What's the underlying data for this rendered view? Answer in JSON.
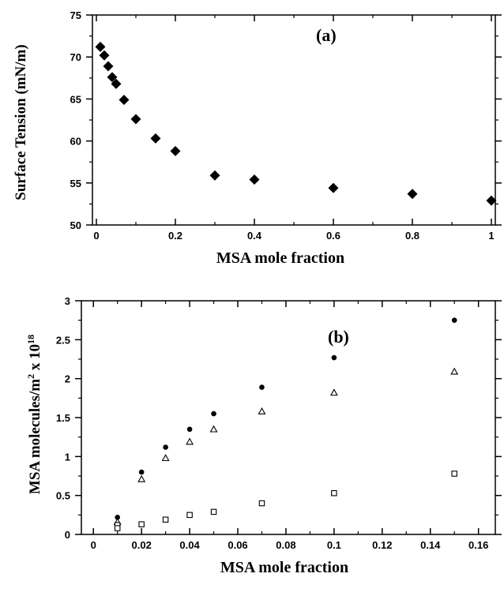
{
  "chart_data": [
    {
      "type": "scatter",
      "panel_label": "(a)",
      "xlabel": "MSA mole fraction",
      "ylabel": "Surface Tension (mN/m)",
      "xlim": [
        -0.01,
        1.01
      ],
      "ylim": [
        50,
        75
      ],
      "xticks": [
        0,
        0.2,
        0.4,
        0.6,
        0.8,
        1
      ],
      "xtick_labels": [
        "0",
        "0.2",
        "0.4",
        "0.6",
        "0.8",
        "1"
      ],
      "yticks": [
        50,
        55,
        60,
        65,
        70,
        75
      ],
      "ytick_labels": [
        "50",
        "55",
        "60",
        "65",
        "70",
        "75"
      ],
      "grid": false,
      "series": [
        {
          "marker": "filled-diamond",
          "x": [
            0.01,
            0.02,
            0.03,
            0.04,
            0.05,
            0.07,
            0.1,
            0.15,
            0.2,
            0.3,
            0.4,
            0.6,
            0.8,
            1.0
          ],
          "y": [
            71.2,
            70.2,
            68.9,
            67.6,
            66.8,
            64.9,
            62.6,
            60.3,
            58.8,
            55.9,
            55.4,
            54.4,
            53.7,
            52.9
          ]
        }
      ]
    },
    {
      "type": "scatter",
      "panel_label": "(b)",
      "xlabel": "MSA mole fraction",
      "ylabel_main": "MSA molecules/m",
      "ylabel_sup1": "2",
      "ylabel_mid": " x 10",
      "ylabel_sup2": "18",
      "xlim": [
        -0.005,
        0.167
      ],
      "ylim": [
        0,
        3
      ],
      "xticks": [
        0,
        0.02,
        0.04,
        0.06,
        0.08,
        0.1,
        0.12,
        0.14,
        0.16
      ],
      "xtick_labels": [
        "0",
        "0.02",
        "0.04",
        "0.06",
        "0.08",
        "0.1",
        "0.12",
        "0.14",
        "0.16"
      ],
      "yticks": [
        0,
        0.5,
        1,
        1.5,
        2,
        2.5,
        3
      ],
      "ytick_labels": [
        "0",
        "0.5",
        "1",
        "1.5",
        "2",
        "2.5",
        "3"
      ],
      "grid": false,
      "series": [
        {
          "marker": "filled-circle",
          "x": [
            0.01,
            0.02,
            0.03,
            0.04,
            0.05,
            0.07,
            0.1,
            0.15
          ],
          "y": [
            0.22,
            0.8,
            1.12,
            1.35,
            1.55,
            1.89,
            2.27,
            2.75
          ]
        },
        {
          "marker": "open-triangle",
          "x": [
            0.01,
            0.02,
            0.03,
            0.04,
            0.05,
            0.07,
            0.1,
            0.15
          ],
          "y": [
            0.16,
            0.71,
            0.98,
            1.19,
            1.35,
            1.58,
            1.82,
            2.09
          ]
        },
        {
          "marker": "open-square",
          "x": [
            0.01,
            0.01,
            0.02,
            0.03,
            0.04,
            0.05,
            0.07,
            0.1,
            0.15
          ],
          "y": [
            0.12,
            0.08,
            0.13,
            0.19,
            0.25,
            0.29,
            0.4,
            0.53,
            0.78
          ]
        }
      ]
    }
  ]
}
